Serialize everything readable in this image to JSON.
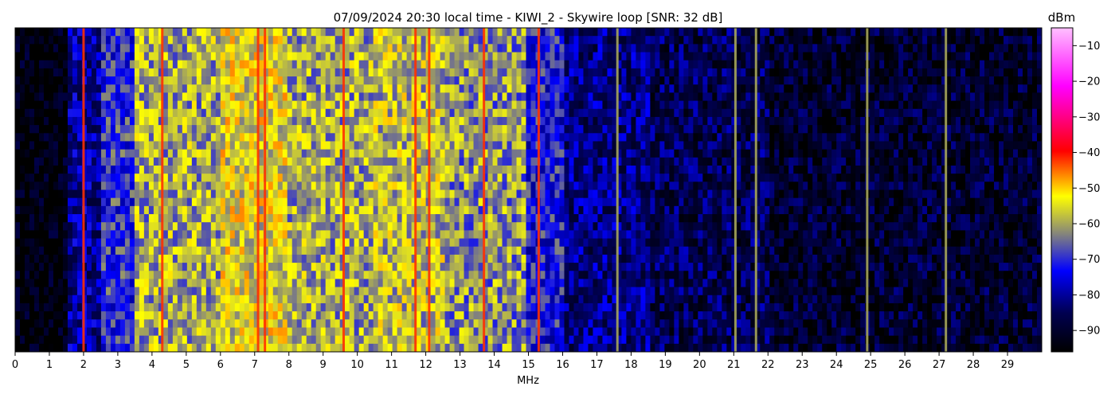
{
  "chart_data": {
    "type": "heatmap",
    "title": "07/09/2024 20:30 local time - KIWI_2 - Skywire loop [SNR: 32 dB]",
    "xlabel": "MHz",
    "ylabel": "",
    "xlim": [
      0,
      30
    ],
    "x_ticks": [
      0,
      1,
      2,
      3,
      4,
      5,
      6,
      7,
      8,
      9,
      10,
      11,
      12,
      13,
      14,
      15,
      16,
      17,
      18,
      19,
      20,
      21,
      22,
      23,
      24,
      25,
      26,
      27,
      28,
      29
    ],
    "colorbar": {
      "label": "dBm",
      "range": [
        -96,
        -5
      ],
      "ticks": [
        -10,
        -20,
        -30,
        -40,
        -50,
        -60,
        -70,
        -80,
        -90
      ],
      "colors": [
        "#000000",
        "#000050",
        "#0000ff",
        "#808080",
        "#ffff00",
        "#ff0000",
        "#ff00ff",
        "#ffc0ff"
      ]
    },
    "grid": false,
    "colormap_description_values": "Power level per frequency bin (dBm). Approximate band profile read from colors.",
    "bands": [
      {
        "from": 0.0,
        "to": 1.5,
        "level": -95
      },
      {
        "from": 1.5,
        "to": 2.5,
        "level": -80
      },
      {
        "from": 2.5,
        "to": 3.5,
        "level": -70
      },
      {
        "from": 3.5,
        "to": 6.0,
        "level": -60
      },
      {
        "from": 6.0,
        "to": 8.0,
        "level": -55
      },
      {
        "from": 8.0,
        "to": 10.5,
        "level": -60
      },
      {
        "from": 10.5,
        "to": 12.5,
        "level": -58
      },
      {
        "from": 12.5,
        "to": 15.0,
        "level": -62
      },
      {
        "from": 15.0,
        "to": 16.0,
        "level": -72
      },
      {
        "from": 16.0,
        "to": 18.5,
        "level": -82
      },
      {
        "from": 18.5,
        "to": 22.0,
        "level": -86
      },
      {
        "from": 22.0,
        "to": 30.0,
        "level": -90
      }
    ],
    "strong_lines_mhz": [
      2.0,
      4.3,
      7.1,
      7.3,
      9.6,
      11.7,
      12.1,
      13.7,
      15.3,
      17.6,
      21.05,
      21.65,
      24.9,
      27.2
    ]
  }
}
